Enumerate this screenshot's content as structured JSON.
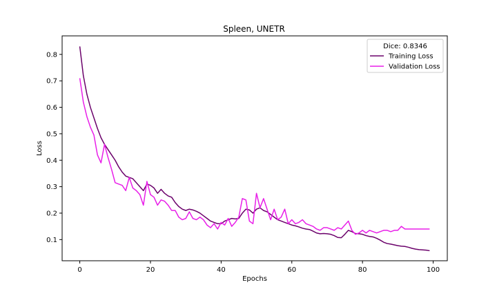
{
  "chart_data": {
    "type": "line",
    "title": "Spleen, UNETR",
    "xlabel": "Epochs",
    "ylabel": "Loss",
    "xlim": [
      -5,
      104
    ],
    "ylim": [
      0.02,
      0.87
    ],
    "xticks": [
      0,
      20,
      40,
      60,
      80,
      100
    ],
    "yticks": [
      0.1,
      0.2,
      0.3,
      0.4,
      0.5,
      0.6,
      0.7,
      0.8
    ],
    "grid": false,
    "legend": {
      "title": "Dice: 0.8346",
      "placement": "top-right"
    },
    "series": [
      {
        "name": "Training Loss",
        "color": "#6a006a",
        "x": [
          0,
          1,
          2,
          3,
          4,
          5,
          6,
          7,
          8,
          9,
          10,
          11,
          12,
          13,
          14,
          15,
          16,
          17,
          18,
          19,
          20,
          21,
          22,
          23,
          24,
          25,
          26,
          27,
          28,
          29,
          30,
          31,
          32,
          33,
          34,
          35,
          36,
          37,
          38,
          39,
          40,
          41,
          42,
          43,
          44,
          45,
          46,
          47,
          48,
          49,
          50,
          51,
          52,
          53,
          54,
          55,
          56,
          57,
          58,
          59,
          60,
          61,
          62,
          63,
          64,
          65,
          66,
          67,
          68,
          69,
          70,
          71,
          72,
          73,
          74,
          75,
          76,
          77,
          78,
          79,
          80,
          81,
          82,
          83,
          84,
          85,
          86,
          87,
          88,
          89,
          90,
          91,
          92,
          93,
          94,
          95,
          96,
          97,
          98,
          99
        ],
        "values": [
          0.83,
          0.72,
          0.65,
          0.6,
          0.56,
          0.52,
          0.485,
          0.46,
          0.44,
          0.42,
          0.4,
          0.375,
          0.355,
          0.34,
          0.335,
          0.33,
          0.315,
          0.3,
          0.285,
          0.31,
          0.305,
          0.295,
          0.275,
          0.29,
          0.275,
          0.265,
          0.26,
          0.24,
          0.225,
          0.215,
          0.21,
          0.215,
          0.212,
          0.207,
          0.2,
          0.19,
          0.18,
          0.17,
          0.165,
          0.16,
          0.16,
          0.17,
          0.175,
          0.18,
          0.178,
          0.18,
          0.2,
          0.215,
          0.212,
          0.2,
          0.215,
          0.22,
          0.21,
          0.205,
          0.195,
          0.185,
          0.175,
          0.17,
          0.165,
          0.16,
          0.155,
          0.152,
          0.148,
          0.143,
          0.14,
          0.138,
          0.132,
          0.125,
          0.122,
          0.123,
          0.122,
          0.12,
          0.115,
          0.108,
          0.107,
          0.12,
          0.135,
          0.13,
          0.123,
          0.122,
          0.12,
          0.115,
          0.112,
          0.11,
          0.105,
          0.098,
          0.09,
          0.085,
          0.083,
          0.08,
          0.077,
          0.075,
          0.074,
          0.071,
          0.067,
          0.064,
          0.062,
          0.061,
          0.06,
          0.058
        ]
      },
      {
        "name": "Validation Loss",
        "color": "#e81ee8",
        "x": [
          0,
          1,
          2,
          3,
          4,
          5,
          6,
          7,
          8,
          9,
          10,
          11,
          12,
          13,
          14,
          15,
          16,
          17,
          18,
          19,
          20,
          21,
          22,
          23,
          24,
          25,
          26,
          27,
          28,
          29,
          30,
          31,
          32,
          33,
          34,
          35,
          36,
          37,
          38,
          39,
          40,
          41,
          42,
          43,
          44,
          45,
          46,
          47,
          48,
          49,
          50,
          51,
          52,
          53,
          54,
          55,
          56,
          57,
          58,
          59,
          60,
          61,
          62,
          63,
          64,
          65,
          66,
          67,
          68,
          69,
          70,
          71,
          72,
          73,
          74,
          75,
          76,
          77,
          78,
          79,
          80,
          81,
          82,
          83,
          84,
          85,
          86,
          87,
          88,
          89,
          90,
          91,
          92,
          93,
          94,
          95,
          96,
          97,
          98,
          99
        ],
        "values": [
          0.71,
          0.62,
          0.565,
          0.525,
          0.495,
          0.42,
          0.39,
          0.46,
          0.41,
          0.365,
          0.315,
          0.31,
          0.305,
          0.285,
          0.335,
          0.295,
          0.285,
          0.27,
          0.23,
          0.32,
          0.27,
          0.26,
          0.23,
          0.25,
          0.245,
          0.23,
          0.21,
          0.21,
          0.185,
          0.175,
          0.18,
          0.205,
          0.18,
          0.175,
          0.185,
          0.175,
          0.155,
          0.145,
          0.16,
          0.14,
          0.165,
          0.155,
          0.18,
          0.15,
          0.165,
          0.185,
          0.255,
          0.25,
          0.17,
          0.16,
          0.275,
          0.22,
          0.255,
          0.215,
          0.175,
          0.215,
          0.175,
          0.185,
          0.215,
          0.16,
          0.175,
          0.16,
          0.165,
          0.175,
          0.16,
          0.155,
          0.15,
          0.14,
          0.135,
          0.145,
          0.145,
          0.14,
          0.135,
          0.145,
          0.14,
          0.155,
          0.17,
          0.135,
          0.12,
          0.125,
          0.135,
          0.125,
          0.135,
          0.13,
          0.125,
          0.13,
          0.135,
          0.135,
          0.13,
          0.135,
          0.135,
          0.15,
          0.14,
          0.14,
          0.14,
          0.14,
          0.14,
          0.14,
          0.14,
          0.14
        ]
      }
    ]
  }
}
